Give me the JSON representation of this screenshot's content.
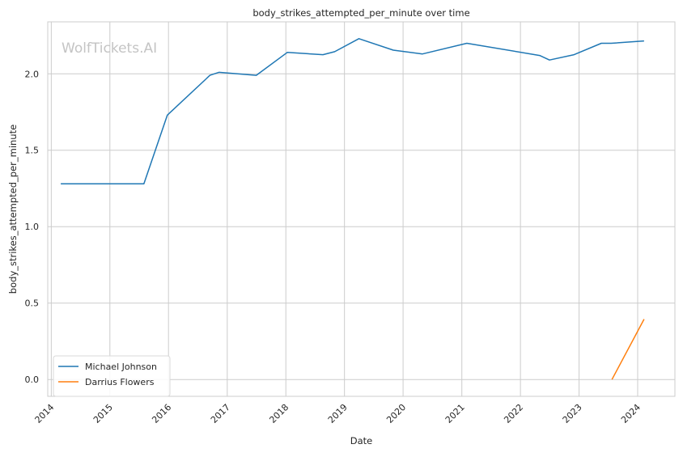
{
  "chart_data": {
    "type": "line",
    "title": "body_strikes_attempted_per_minute over time",
    "xlabel": "Date",
    "ylabel": "body_strikes_attempted_per_minute",
    "xlim": [
      "2013-12-10",
      "2024-08-20"
    ],
    "ylim": [
      -0.11,
      2.34
    ],
    "x_ticks": [
      "2014",
      "2015",
      "2016",
      "2017",
      "2018",
      "2019",
      "2020",
      "2021",
      "2022",
      "2023",
      "2024"
    ],
    "y_ticks": [
      "0.0",
      "0.5",
      "1.0",
      "1.5",
      "2.0"
    ],
    "grid": true,
    "legend": "lower-left",
    "watermark": "WolfTickets.AI",
    "series": [
      {
        "name": "Michael Johnson",
        "color": "#1f77b4",
        "points": [
          {
            "x": "2014-03-01",
            "y": 1.28
          },
          {
            "x": "2015-08-01",
            "y": 1.28
          },
          {
            "x": "2015-12-25",
            "y": 1.73
          },
          {
            "x": "2016-09-15",
            "y": 1.99
          },
          {
            "x": "2016-11-10",
            "y": 2.01
          },
          {
            "x": "2017-07-01",
            "y": 1.99
          },
          {
            "x": "2018-01-10",
            "y": 2.14
          },
          {
            "x": "2018-08-20",
            "y": 2.125
          },
          {
            "x": "2018-11-01",
            "y": 2.145
          },
          {
            "x": "2019-04-01",
            "y": 2.23
          },
          {
            "x": "2019-11-01",
            "y": 2.155
          },
          {
            "x": "2020-05-01",
            "y": 2.13
          },
          {
            "x": "2021-02-01",
            "y": 2.2
          },
          {
            "x": "2022-05-01",
            "y": 2.12
          },
          {
            "x": "2022-07-01",
            "y": 2.09
          },
          {
            "x": "2022-12-01",
            "y": 2.125
          },
          {
            "x": "2023-05-20",
            "y": 2.2
          },
          {
            "x": "2023-07-20",
            "y": 2.2
          },
          {
            "x": "2024-02-10",
            "y": 2.215
          }
        ]
      },
      {
        "name": "Darrius Flowers",
        "color": "#ff7f0e",
        "points": [
          {
            "x": "2023-07-25",
            "y": 0.0
          },
          {
            "x": "2024-02-10",
            "y": 0.395
          }
        ]
      }
    ]
  }
}
